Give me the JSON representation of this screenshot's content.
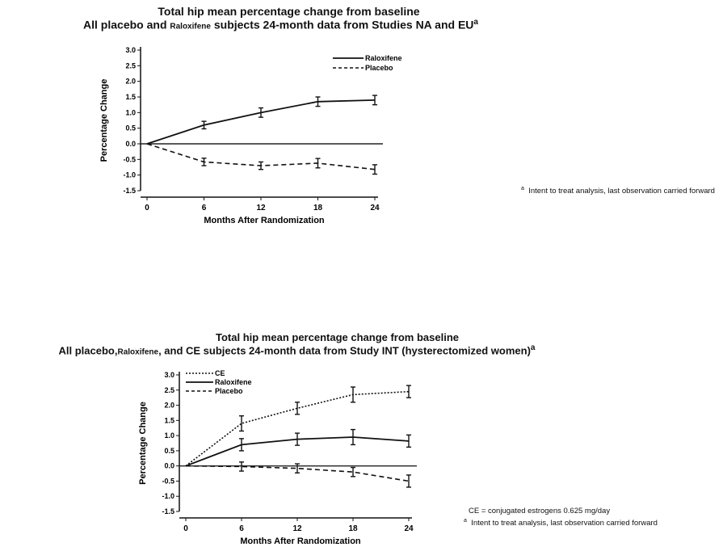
{
  "chart_data": [
    {
      "type": "line",
      "title_main": "Total hip mean percentage change from baseline",
      "title_part1": "All placebo and ",
      "title_drug": "Raloxifene",
      "title_part2": " subjects 24-month data from Studies NA and EU",
      "title_sup": "a",
      "xlabel": "Months After Randomization",
      "ylabel": "Percentage Change",
      "x": [
        0,
        6,
        12,
        18,
        24
      ],
      "xticks": [
        "0",
        "6",
        "12",
        "18",
        "24"
      ],
      "yticks": [
        "3.0",
        "2.5",
        "2.0",
        "1.5",
        "1.0",
        "0.5",
        "0.0",
        "-0.5",
        "-1.0",
        "-1.5"
      ],
      "ylim": [
        -1.5,
        3.0
      ],
      "series": [
        {
          "name": "Raloxifene",
          "style": "solid",
          "values": [
            0.0,
            0.6,
            1.0,
            1.35,
            1.4
          ],
          "err": [
            0,
            0.12,
            0.15,
            0.15,
            0.15
          ]
        },
        {
          "name": "Placebo",
          "style": "dashed",
          "values": [
            0.0,
            -0.58,
            -0.7,
            -0.62,
            -0.82
          ],
          "err": [
            0,
            0.12,
            0.12,
            0.15,
            0.15
          ]
        }
      ],
      "footnotes": [
        {
          "marker": "a",
          "text": "Intent to treat analysis, last observation carried forward"
        }
      ],
      "legend_position": "top-right",
      "grid": false
    },
    {
      "type": "line",
      "title_main": "Total hip mean percentage change from baseline",
      "title_part1": "All placebo,",
      "title_drug": "Raloxifene",
      "title_part2": ", and CE subjects 24-month data from Study INT (hysterectomized women)",
      "title_sup": "a",
      "xlabel": "Months After Randomization",
      "ylabel": "Percentage Change",
      "x": [
        0,
        6,
        12,
        18,
        24
      ],
      "xticks": [
        "0",
        "6",
        "12",
        "18",
        "24"
      ],
      "yticks": [
        "3.0",
        "2.5",
        "2.0",
        "1.5",
        "1.0",
        "0.5",
        "0.0",
        "-0.5",
        "-1.0",
        "-1.5"
      ],
      "ylim": [
        -1.5,
        3.0
      ],
      "series": [
        {
          "name": "CE",
          "style": "dotted",
          "values": [
            0.0,
            1.4,
            1.9,
            2.35,
            2.45
          ],
          "err": [
            0,
            0.25,
            0.2,
            0.25,
            0.2
          ]
        },
        {
          "name": "Raloxifene",
          "style": "solid",
          "values": [
            0.0,
            0.7,
            0.88,
            0.95,
            0.82
          ],
          "err": [
            0,
            0.2,
            0.2,
            0.25,
            0.2
          ]
        },
        {
          "name": "Placebo",
          "style": "dashed",
          "values": [
            0.0,
            -0.02,
            -0.08,
            -0.2,
            -0.5
          ],
          "err": [
            0,
            0.15,
            0.15,
            0.15,
            0.2
          ]
        }
      ],
      "footnotes": [
        {
          "marker": "",
          "text": "CE = conjugated estrogens 0.625 mg/day"
        },
        {
          "marker": "a",
          "text": "Intent to treat analysis, last observation carried forward"
        }
      ],
      "legend_position": "top-left",
      "grid": false
    }
  ]
}
